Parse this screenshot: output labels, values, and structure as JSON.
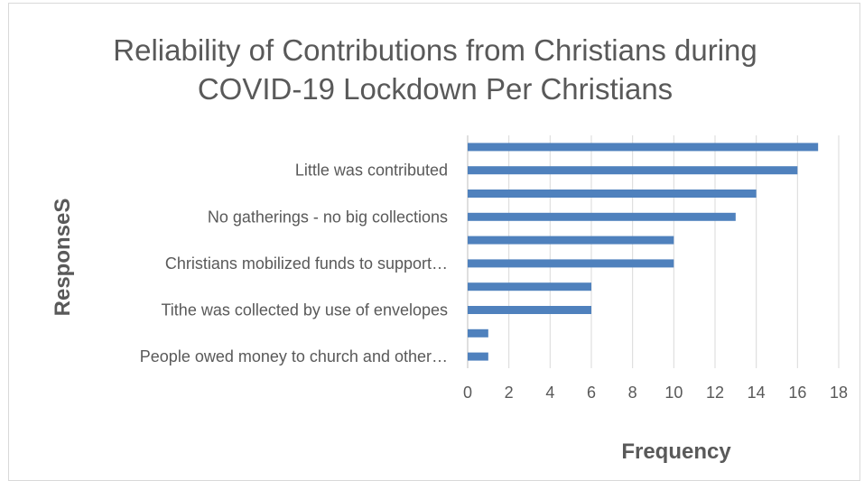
{
  "chart_data": {
    "type": "bar",
    "orientation": "horizontal",
    "title": "Reliability of Contributions from Christians during COVID-19 Lockdown Per Christians",
    "title_lines": [
      "Reliability of Contributions from Christians during",
      "COVID-19 Lockdown Per Christians"
    ],
    "xlabel": "Frequency",
    "ylabel": "ResponseS",
    "xlim": [
      0,
      18
    ],
    "xticks": [
      "0",
      "2",
      "4",
      "6",
      "8",
      "10",
      "12",
      "14",
      "16",
      "18"
    ],
    "grid": true,
    "legend": "none",
    "bar_color": "#4f81bd",
    "visible_category_labels": [
      "Little was contributed",
      "No gatherings - no big collections",
      "Christians mobilized funds to support…",
      "Tithe was collected by use of envelopes",
      "People owed money to church and other…"
    ],
    "bars_top_to_bottom": [
      17,
      16,
      14,
      13,
      10,
      10,
      6,
      6,
      1,
      1
    ]
  }
}
